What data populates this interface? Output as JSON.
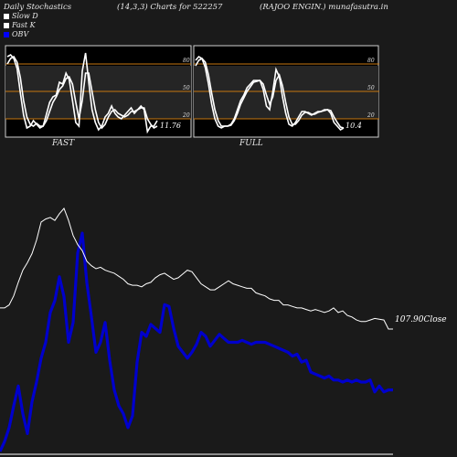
{
  "header": {
    "title": "Daily Stochastics",
    "params": "(14,3,3) Charts for 522257",
    "company": "(RAJOO ENGIN.) munafasutra.in"
  },
  "legend": [
    {
      "label": "Slow  D",
      "color": "#ffffff"
    },
    {
      "label": "Fast K",
      "color": "#ffffff"
    },
    {
      "label": "OBV",
      "color": "#0000ff"
    }
  ],
  "colors": {
    "background": "#1a1a1a",
    "panel_bg": "#000000",
    "level_line": "#c8780f",
    "stoch_line": "#ffffff",
    "obv_line": "#0000cc",
    "close_line": "#ffffff"
  },
  "chart_data": [
    {
      "type": "line",
      "panel": "FAST",
      "title": "FAST",
      "ylim": [
        0,
        100
      ],
      "yticks": [
        20,
        50,
        80
      ],
      "last_value_label": "11.76",
      "series": [
        {
          "values": [
            88,
            90,
            86,
            75,
            48,
            24,
            10,
            12,
            18,
            14,
            10,
            12,
            25,
            38,
            44,
            46,
            60,
            58,
            70,
            63,
            40,
            16,
            12,
            72,
            92,
            60,
            30,
            16,
            8,
            12,
            22,
            26,
            34,
            26,
            22,
            20,
            24,
            28,
            32,
            26,
            30,
            34,
            30,
            6,
            12,
            12,
            18
          ]
        },
        {
          "values": [
            80,
            86,
            88,
            82,
            65,
            40,
            22,
            14,
            12,
            15,
            12,
            12,
            18,
            28,
            38,
            44,
            52,
            56,
            64,
            66,
            58,
            38,
            20,
            40,
            70,
            70,
            50,
            30,
            16,
            10,
            14,
            22,
            28,
            30,
            26,
            24,
            22,
            24,
            28,
            28,
            30,
            32,
            32,
            20,
            14,
            10,
            12
          ]
        }
      ]
    },
    {
      "type": "line",
      "panel": "FULL",
      "title": "FULL",
      "ylim": [
        0,
        100
      ],
      "yticks": [
        20,
        50,
        80
      ],
      "last_value_label": "10.4",
      "series": [
        {
          "values": [
            84,
            88,
            86,
            76,
            58,
            36,
            20,
            12,
            10,
            12,
            12,
            14,
            20,
            30,
            40,
            46,
            54,
            58,
            62,
            62,
            62,
            52,
            34,
            30,
            50,
            74,
            66,
            44,
            26,
            14,
            12,
            16,
            22,
            28,
            28,
            26,
            24,
            26,
            28,
            28,
            30,
            30,
            26,
            16,
            12,
            8,
            10
          ]
        },
        {
          "values": [
            78,
            84,
            86,
            82,
            68,
            48,
            30,
            18,
            12,
            12,
            12,
            13,
            18,
            26,
            36,
            43,
            50,
            55,
            60,
            61,
            62,
            58,
            46,
            36,
            44,
            62,
            68,
            56,
            38,
            22,
            14,
            14,
            18,
            24,
            27,
            27,
            25,
            25,
            27,
            28,
            29,
            30,
            29,
            22,
            16,
            11,
            10
          ]
        }
      ]
    },
    {
      "type": "line",
      "panel": "PRICE",
      "title": "",
      "close_label": "107.90Close",
      "series": [
        {
          "values": [
            100,
            100,
            104,
            116,
            134,
            150,
            160,
            172,
            190,
            214,
            218,
            220,
            216,
            225,
            232,
            216,
            196,
            184,
            176,
            162,
            156,
            152,
            154,
            150,
            148,
            146,
            142,
            138,
            132,
            130,
            130,
            128,
            132,
            134,
            140,
            144,
            146,
            142,
            138,
            140,
            145,
            150,
            148,
            140,
            132,
            128,
            124,
            124,
            128,
            132,
            136,
            132,
            130,
            128,
            126,
            126,
            120,
            118,
            116,
            112,
            110,
            110,
            104,
            104,
            102,
            100,
            100,
            98,
            96,
            98,
            96,
            94,
            96,
            100,
            94,
            96,
            90,
            88,
            84,
            82,
            82,
            84,
            86,
            85,
            84,
            72,
            72
          ]
        },
        {
          "values": [
            20,
            30,
            44,
            66,
            86,
            58,
            38,
            70,
            90,
            114,
            130,
            160,
            172,
            196,
            176,
            130,
            150,
            220,
            240,
            190,
            156,
            120,
            130,
            150,
            112,
            82,
            66,
            58,
            44,
            56,
            110,
            140,
            136,
            148,
            144,
            140,
            168,
            166,
            144,
            126,
            120,
            114,
            120,
            128,
            140,
            136,
            126,
            132,
            138,
            134,
            130,
            130,
            130,
            132,
            130,
            128,
            130,
            130,
            130,
            128,
            126,
            124,
            122,
            120,
            116,
            118,
            110,
            112,
            100,
            98,
            96,
            94,
            96,
            92,
            92,
            90,
            92,
            90,
            92,
            90,
            90,
            92,
            80,
            86,
            80,
            82,
            82
          ]
        }
      ]
    }
  ]
}
